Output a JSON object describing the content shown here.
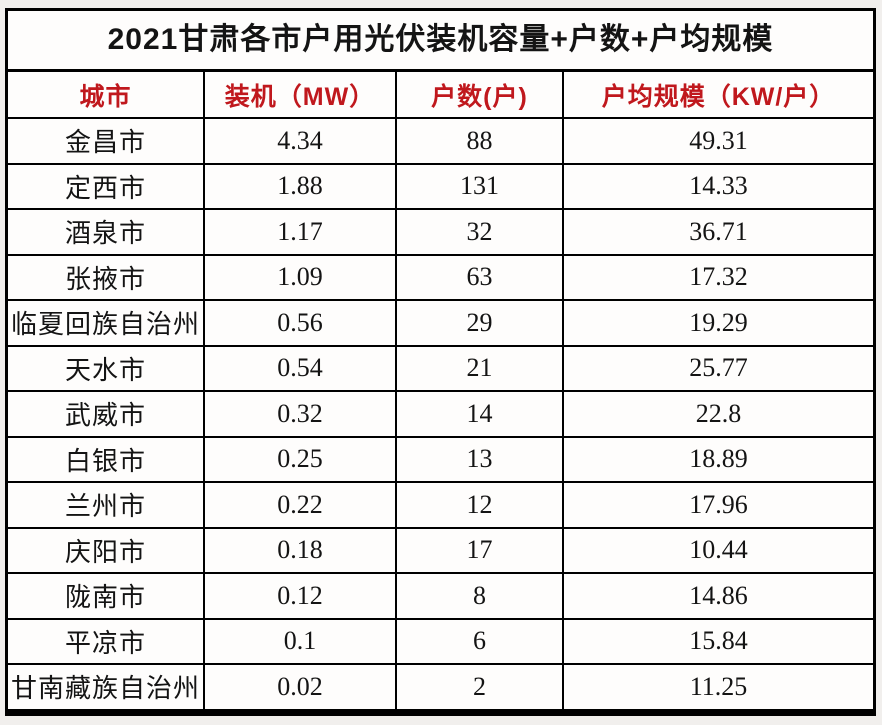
{
  "page": {
    "background_color": "#f1efed",
    "table_background": "#fefdfc",
    "border_color": "#000000",
    "header_text_color": "#c0181d",
    "title_text_color": "#141414"
  },
  "title": "2021甘肃各市户用光伏装机容量+户数+户均规模",
  "table": {
    "columns": [
      {
        "label": "城市"
      },
      {
        "label": "装机（MW）"
      },
      {
        "label": "户数(户)"
      },
      {
        "label": "户均规模（KW/户）"
      }
    ],
    "rows": [
      [
        "金昌市",
        "4.34",
        "88",
        "49.31"
      ],
      [
        "定西市",
        "1.88",
        "131",
        "14.33"
      ],
      [
        "酒泉市",
        "1.17",
        "32",
        "36.71"
      ],
      [
        "张掖市",
        "1.09",
        "63",
        "17.32"
      ],
      [
        "临夏回族自治州",
        "0.56",
        "29",
        "19.29"
      ],
      [
        "天水市",
        "0.54",
        "21",
        "25.77"
      ],
      [
        "武威市",
        "0.32",
        "14",
        "22.8"
      ],
      [
        "白银市",
        "0.25",
        "13",
        "18.89"
      ],
      [
        "兰州市",
        "0.22",
        "12",
        "17.96"
      ],
      [
        "庆阳市",
        "0.18",
        "17",
        "10.44"
      ],
      [
        "陇南市",
        "0.12",
        "8",
        "14.86"
      ],
      [
        "平凉市",
        "0.1",
        "6",
        "15.84"
      ],
      [
        "甘南藏族自治州",
        "0.02",
        "2",
        "11.25"
      ]
    ]
  },
  "chart_data": {
    "type": "table",
    "title": "2021甘肃各市户用光伏装机容量+户数+户均规模",
    "columns": [
      "城市",
      "装机（MW）",
      "户数(户)",
      "户均规模（KW/户）"
    ],
    "rows": [
      {
        "city": "金昌市",
        "installed_mw": 4.34,
        "households": 88,
        "avg_kw_per_household": 49.31
      },
      {
        "city": "定西市",
        "installed_mw": 1.88,
        "households": 131,
        "avg_kw_per_household": 14.33
      },
      {
        "city": "酒泉市",
        "installed_mw": 1.17,
        "households": 32,
        "avg_kw_per_household": 36.71
      },
      {
        "city": "张掖市",
        "installed_mw": 1.09,
        "households": 63,
        "avg_kw_per_household": 17.32
      },
      {
        "city": "临夏回族自治州",
        "installed_mw": 0.56,
        "households": 29,
        "avg_kw_per_household": 19.29
      },
      {
        "city": "天水市",
        "installed_mw": 0.54,
        "households": 21,
        "avg_kw_per_household": 25.77
      },
      {
        "city": "武威市",
        "installed_mw": 0.32,
        "households": 14,
        "avg_kw_per_household": 22.8
      },
      {
        "city": "白银市",
        "installed_mw": 0.25,
        "households": 13,
        "avg_kw_per_household": 18.89
      },
      {
        "city": "兰州市",
        "installed_mw": 0.22,
        "households": 12,
        "avg_kw_per_household": 17.96
      },
      {
        "city": "庆阳市",
        "installed_mw": 0.18,
        "households": 17,
        "avg_kw_per_household": 10.44
      },
      {
        "city": "陇南市",
        "installed_mw": 0.12,
        "households": 8,
        "avg_kw_per_household": 14.86
      },
      {
        "city": "平凉市",
        "installed_mw": 0.1,
        "households": 6,
        "avg_kw_per_household": 15.84
      },
      {
        "city": "甘南藏族自治州",
        "installed_mw": 0.02,
        "households": 2,
        "avg_kw_per_household": 11.25
      }
    ]
  }
}
